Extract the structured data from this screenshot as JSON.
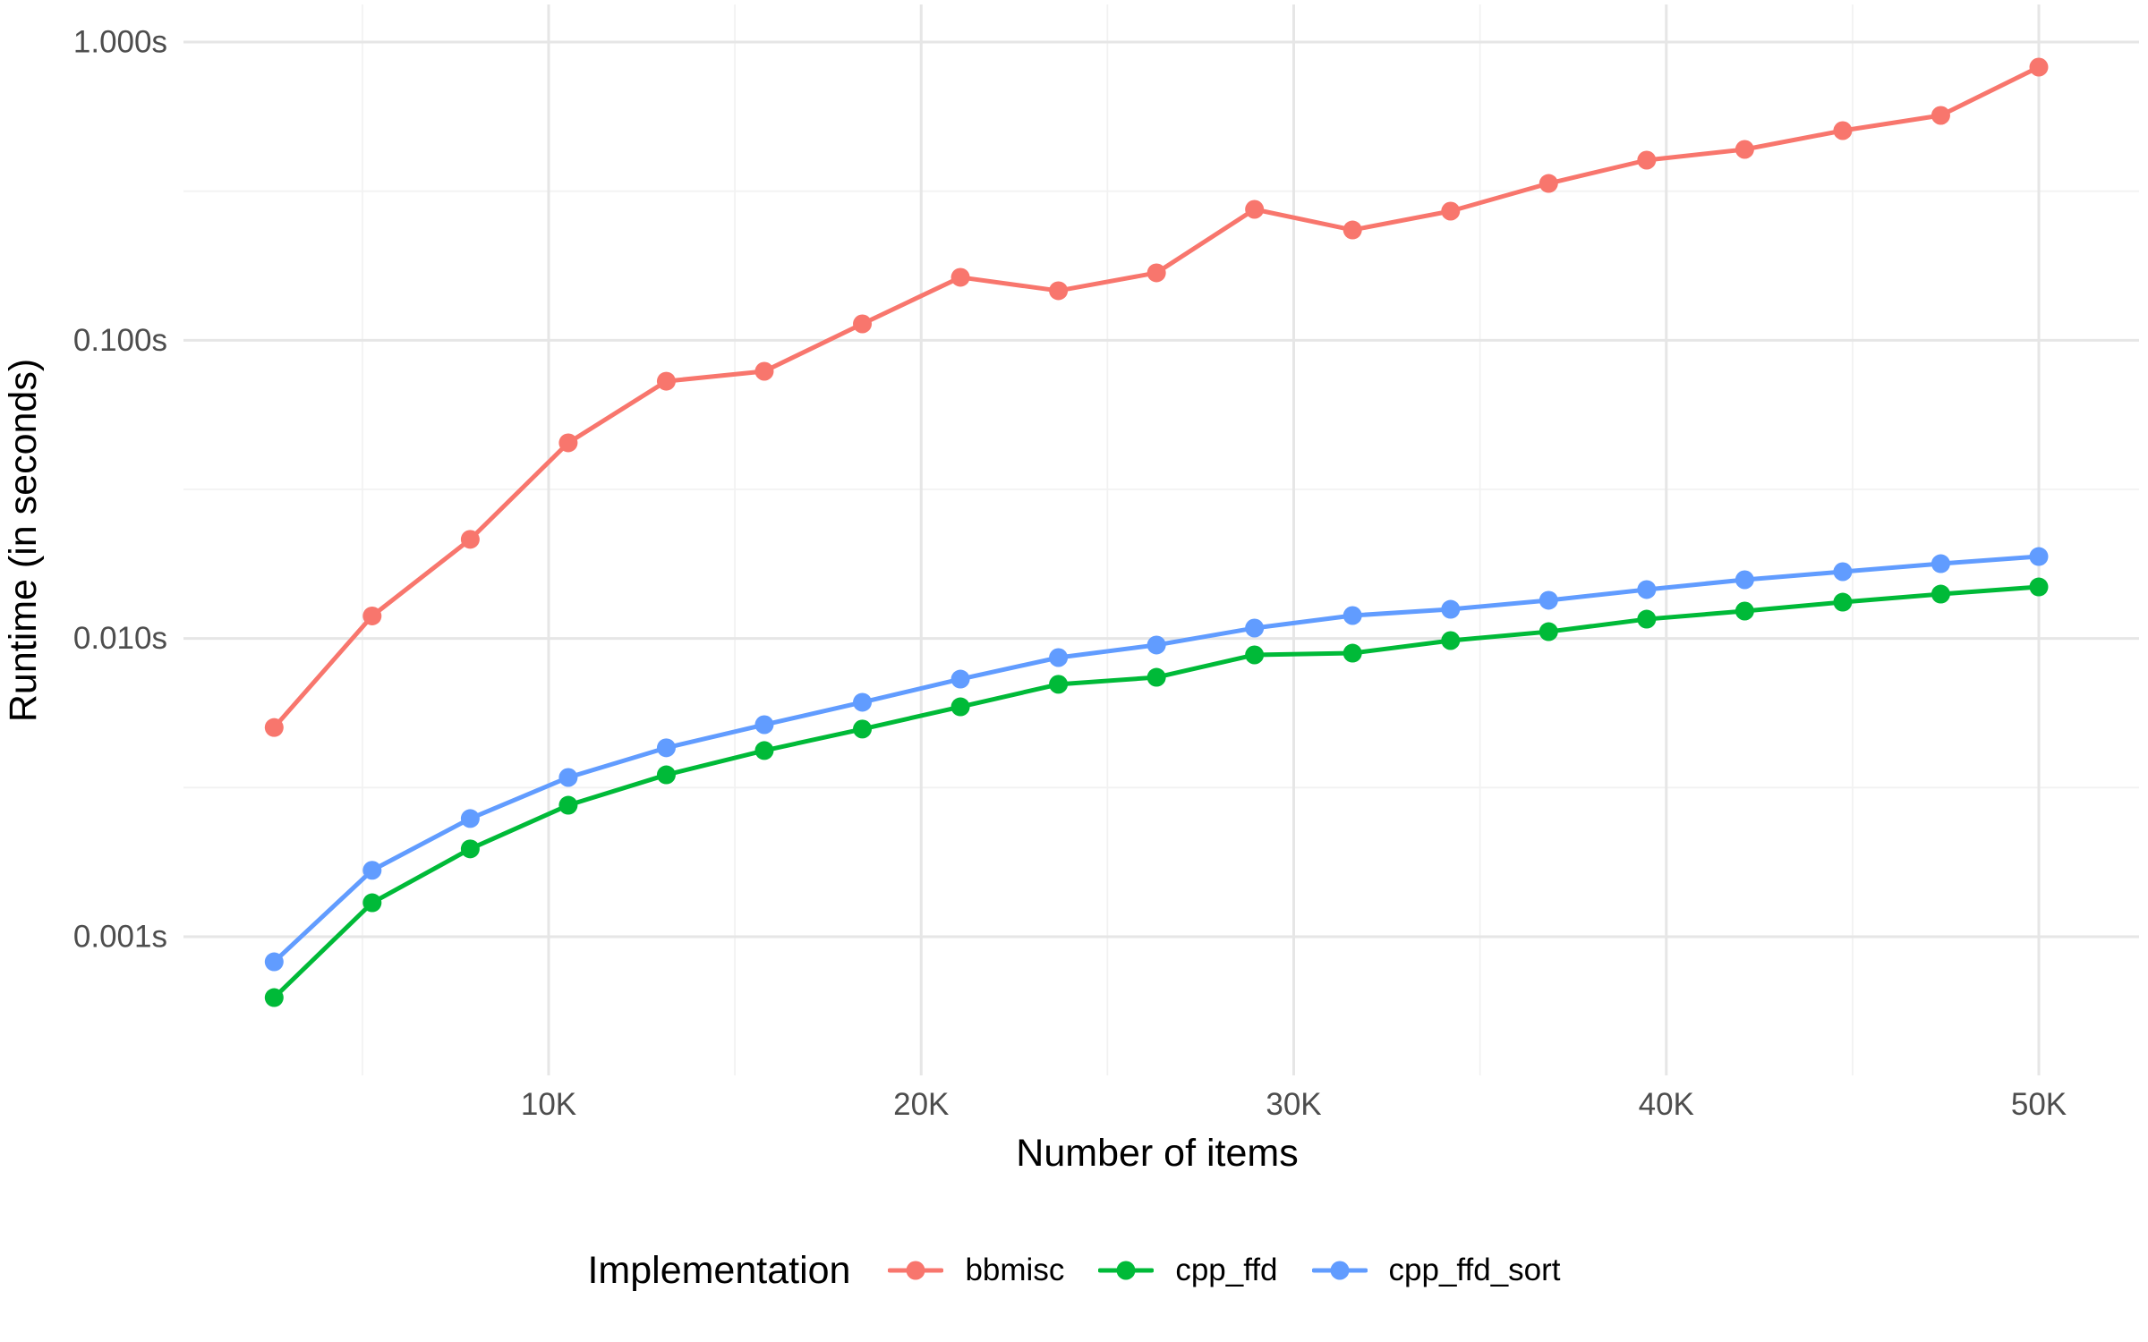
{
  "chart_data": {
    "type": "line",
    "title": "",
    "xlabel": "Number of items",
    "ylabel": "Runtime (in seconds)",
    "legend": {
      "title": "Implementation",
      "position": "bottom"
    },
    "x_axis": {
      "ticks": [
        {
          "value": 10000,
          "label": "10K"
        },
        {
          "value": 20000,
          "label": "20K"
        },
        {
          "value": 30000,
          "label": "30K"
        },
        {
          "value": 40000,
          "label": "40K"
        },
        {
          "value": 50000,
          "label": "50K"
        }
      ],
      "minor": [
        5000,
        15000,
        25000,
        35000,
        45000
      ],
      "range": [
        200,
        52400
      ]
    },
    "y_axis": {
      "scale": "log10",
      "ticks": [
        {
          "value": 1.0,
          "label": "1.000s"
        },
        {
          "value": 0.1,
          "label": "0.100s"
        },
        {
          "value": 0.01,
          "label": "0.010s"
        },
        {
          "value": 0.001,
          "label": "0.001s"
        }
      ],
      "minor": [
        0.31623,
        0.031623,
        0.0031623
      ],
      "range": [
        0.00035,
        1.33
      ]
    },
    "x": [
      2632,
      5263,
      7895,
      10526,
      13158,
      15789,
      18421,
      21053,
      23684,
      26316,
      28947,
      31579,
      34211,
      36842,
      39474,
      42105,
      44737,
      47368,
      50000
    ],
    "series": [
      {
        "name": "bbmisc",
        "color": "#F8766D",
        "values": [
          0.00503,
          0.0119,
          0.0215,
          0.0453,
          0.0729,
          0.0787,
          0.1135,
          0.1626,
          0.1466,
          0.1683,
          0.2748,
          0.2344,
          0.271,
          0.3357,
          0.4018,
          0.4365,
          0.5047,
          0.5675,
          0.8241
        ]
      },
      {
        "name": "cpp_ffd",
        "color": "#00BA38",
        "values": [
          0.000625,
          0.0013,
          0.00197,
          0.00276,
          0.00349,
          0.00421,
          0.00497,
          0.0059,
          0.00702,
          0.00741,
          0.00881,
          0.00893,
          0.00984,
          0.01054,
          0.01161,
          0.01236,
          0.01324,
          0.01409,
          0.01489
        ]
      },
      {
        "name": "cpp_ffd_sort",
        "color": "#619CFF",
        "values": [
          0.000824,
          0.00167,
          0.00249,
          0.00342,
          0.0043,
          0.00514,
          0.00611,
          0.00731,
          0.00863,
          0.00951,
          0.01084,
          0.01194,
          0.01253,
          0.01343,
          0.01459,
          0.01574,
          0.01675,
          0.01782,
          0.01883
        ]
      }
    ],
    "styles": {
      "grid_major": "#e6e6e6",
      "grid_minor": "#f2f2f2",
      "tick_label_color": "#4d4d4d",
      "title_color": "#000000"
    }
  }
}
